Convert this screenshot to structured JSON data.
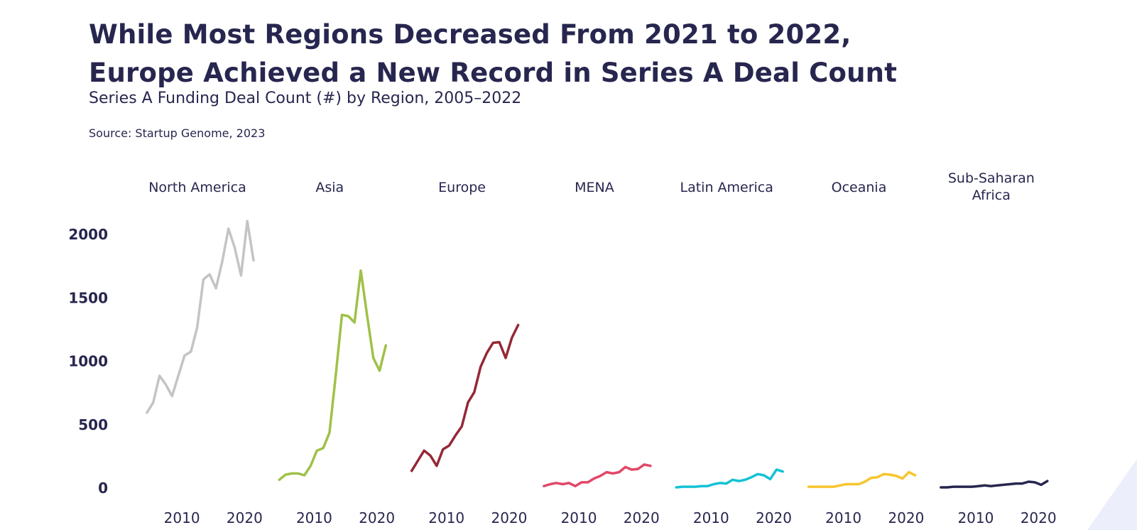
{
  "header": {
    "title_line1": "While Most Regions Decreased From 2021 to 2022,",
    "title_line2": "Europe Achieved a New Record in Series A Deal Count",
    "subtitle": "Series A Funding Deal Count (#) by Region, 2005–2022",
    "source": "Source: Startup Genome, 2023"
  },
  "chart_data": {
    "type": "line",
    "title": "While Most Regions Decreased From 2021 to 2022, Europe Achieved a New Record in Series A Deal Count",
    "subtitle": "Series A Funding Deal Count (#) by Region, 2005–2022",
    "xlabel": "",
    "ylabel": "",
    "ylim": [
      0,
      2000
    ],
    "yticks": [
      0,
      500,
      1000,
      1500,
      2000
    ],
    "x": [
      2005,
      2006,
      2007,
      2008,
      2009,
      2010,
      2011,
      2012,
      2013,
      2014,
      2015,
      2016,
      2017,
      2018,
      2019,
      2020,
      2021,
      2022
    ],
    "xticks": [
      2010,
      2020
    ],
    "grid": false,
    "series": [
      {
        "name": "North America",
        "color": "#c4c4c4",
        "values": [
          590,
          670,
          880,
          810,
          720,
          880,
          1040,
          1070,
          1260,
          1640,
          1680,
          1570,
          1780,
          2040,
          1890,
          1670,
          2100,
          1790
        ]
      },
      {
        "name": "Asia",
        "color": "#9fc148",
        "values": [
          60,
          100,
          110,
          110,
          95,
          170,
          290,
          310,
          430,
          880,
          1360,
          1350,
          1300,
          1710,
          1360,
          1020,
          920,
          1120
        ]
      },
      {
        "name": "Europe",
        "color": "#952836",
        "values": [
          130,
          210,
          290,
          250,
          170,
          300,
          330,
          410,
          480,
          670,
          750,
          950,
          1060,
          1140,
          1145,
          1020,
          1180,
          1280
        ]
      },
      {
        "name": "MENA",
        "color": "#e24767",
        "values": [
          10,
          25,
          35,
          25,
          35,
          10,
          40,
          40,
          70,
          90,
          120,
          110,
          120,
          160,
          140,
          145,
          180,
          170
        ]
      },
      {
        "name": "Latin America",
        "color": "#13c2d5",
        "values": [
          0,
          5,
          5,
          5,
          10,
          10,
          25,
          35,
          30,
          60,
          50,
          60,
          80,
          105,
          95,
          65,
          140,
          125
        ]
      },
      {
        "name": "Oceania",
        "color": "#f7c52d",
        "values": [
          5,
          5,
          5,
          5,
          5,
          15,
          25,
          25,
          25,
          45,
          75,
          80,
          105,
          100,
          90,
          70,
          120,
          95
        ]
      },
      {
        "name": "Sub-Saharan Africa",
        "label_lines": [
          "Sub-Saharan",
          "Africa"
        ],
        "color": "#27264f",
        "values": [
          0,
          0,
          5,
          5,
          5,
          5,
          10,
          15,
          10,
          15,
          20,
          25,
          30,
          30,
          45,
          40,
          20,
          50
        ]
      }
    ]
  }
}
